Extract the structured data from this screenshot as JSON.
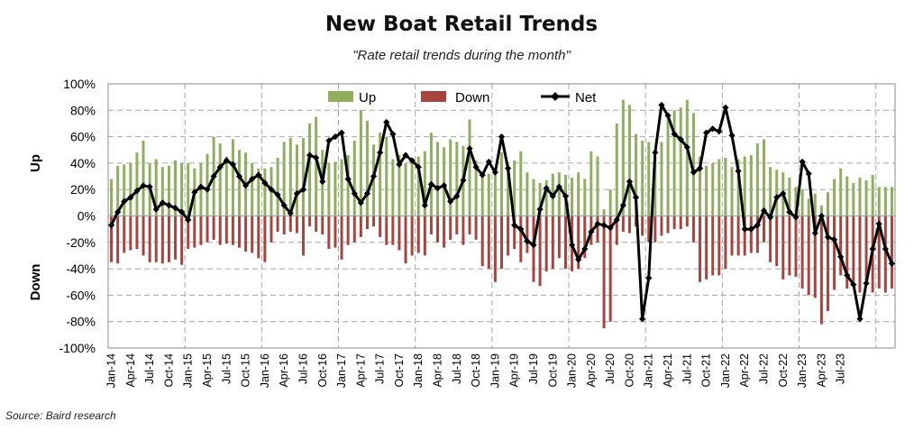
{
  "title": "New Boat Retail Trends",
  "subtitle": "\"Rate retail trends during the month\"",
  "source": "Source: Baird research",
  "colors": {
    "up": "#8fae5e",
    "down": "#a8443e",
    "net": "#000000",
    "grid": "#a6a6a6"
  },
  "chart_data": {
    "type": "bar",
    "ylabel_up": "Up",
    "ylabel_down": "Down",
    "ylim": [
      -100,
      100
    ],
    "yticks": [
      100,
      80,
      60,
      40,
      20,
      0,
      -20,
      -40,
      -60,
      -80,
      -100
    ],
    "ytick_labels": [
      "100%",
      "80%",
      "60%",
      "40%",
      "20%",
      "0%",
      "-20%",
      "-40%",
      "-60%",
      "-80%",
      "-100%"
    ],
    "legend": [
      "Up",
      "Down",
      "Net"
    ],
    "legend_position": "top-left",
    "grid": true,
    "x_tick_labels": [
      "Jan-14",
      "Apr-14",
      "Jul-14",
      "Oct-14",
      "Jan-15",
      "Apr-15",
      "Jul-15",
      "Oct-15",
      "Jan-16",
      "Apr-16",
      "Jul-16",
      "Oct-16",
      "Jan-17",
      "Apr-17",
      "Jul-17",
      "Oct-17",
      "Jan-18",
      "Apr-18",
      "Jul-18",
      "Oct-18",
      "Jan-19",
      "Apr-19",
      "Jul-19",
      "Oct-19",
      "Jan-20",
      "Apr-20",
      "Jul-20",
      "Oct-20",
      "Jan-21",
      "Apr-21",
      "Jul-21",
      "Oct-21",
      "Jan-22",
      "Apr-22",
      "Jul-22",
      "Oct-22",
      "Jan-23",
      "Apr-23",
      "Jul-23"
    ],
    "x_start": "Jan-14",
    "x_end": "Sep-23",
    "series": [
      {
        "name": "Up",
        "type": "bar",
        "values": [
          28,
          38,
          39,
          40,
          48,
          57,
          40,
          43,
          37,
          38,
          42,
          40,
          40,
          36,
          40,
          47,
          60,
          55,
          45,
          58,
          50,
          48,
          40,
          36,
          36,
          37,
          44,
          56,
          59,
          54,
          59,
          70,
          75,
          50,
          40,
          41,
          43,
          46,
          57,
          80,
          72,
          54,
          63,
          60,
          43,
          46,
          40,
          40,
          45,
          49,
          63,
          56,
          52,
          58,
          56,
          53,
          73,
          42,
          33,
          32,
          35,
          48,
          39,
          42,
          49,
          33,
          28,
          25,
          27,
          32,
          33,
          31,
          29,
          33,
          28,
          49,
          45,
          5,
          20,
          70,
          88,
          84,
          62,
          57,
          56,
          45,
          56,
          77,
          80,
          82,
          88,
          78,
          45,
          38,
          40,
          43,
          44,
          37,
          43,
          45,
          46,
          55,
          58,
          37,
          35,
          33,
          29,
          22,
          20,
          13,
          17,
          8,
          18,
          28,
          36,
          30,
          25,
          29,
          27,
          31,
          22,
          22,
          22
        ]
      },
      {
        "name": "Down",
        "type": "bar",
        "values": [
          -35,
          -36,
          -28,
          -26,
          -25,
          -30,
          -35,
          -35,
          -36,
          -35,
          -33,
          -37,
          -25,
          -24,
          -22,
          -20,
          -18,
          -22,
          -21,
          -22,
          -24,
          -27,
          -28,
          -32,
          -35,
          -20,
          -12,
          -14,
          -12,
          -13,
          -30,
          -8,
          -12,
          -14,
          -25,
          -24,
          -33,
          -22,
          -20,
          -16,
          -10,
          -8,
          -16,
          -22,
          -22,
          -26,
          -36,
          -30,
          -28,
          -30,
          -14,
          -20,
          -24,
          -18,
          -14,
          -22,
          -14,
          -18,
          -38,
          -40,
          -50,
          -40,
          -30,
          -25,
          -35,
          -28,
          -50,
          -53,
          -42,
          -40,
          -32,
          -40,
          -42,
          -40,
          -32,
          -22,
          -20,
          -85,
          -80,
          -22,
          -12,
          -13,
          -8,
          -15,
          -20,
          -20,
          -15,
          -13,
          -10,
          -10,
          -8,
          -20,
          -50,
          -48,
          -45,
          -45,
          -40,
          -30,
          -30,
          -30,
          -28,
          -28,
          -20,
          -35,
          -38,
          -48,
          -45,
          -46,
          -55,
          -60,
          -62,
          -82,
          -72,
          -56,
          -45,
          -55,
          -50,
          -58,
          -50,
          -58,
          -55,
          -58,
          -55
        ]
      },
      {
        "name": "Net",
        "type": "line",
        "values": [
          -7,
          3,
          11,
          14,
          19,
          23,
          22,
          5,
          10,
          8,
          6,
          3,
          -3,
          18,
          22,
          20,
          30,
          37,
          42,
          39,
          30,
          23,
          28,
          31,
          25,
          20,
          16,
          8,
          2,
          17,
          20,
          46,
          44,
          26,
          57,
          60,
          63,
          28,
          17,
          10,
          17,
          30,
          48,
          71,
          62,
          39,
          46,
          42,
          37,
          8,
          24,
          21,
          23,
          11,
          15,
          27,
          51,
          37,
          31,
          41,
          33,
          60,
          36,
          -7,
          -10,
          -19,
          -22,
          5,
          21,
          15,
          22,
          15,
          -22,
          -33,
          -25,
          -12,
          -6,
          -7,
          -9,
          -3,
          8,
          26,
          14,
          -78,
          -47,
          48,
          84,
          76,
          62,
          58,
          52,
          33,
          36,
          63,
          66,
          64,
          82,
          61,
          34,
          -10,
          -10,
          -7,
          4,
          -1,
          14,
          17,
          3,
          -1,
          41,
          32,
          -13,
          0,
          -16,
          -18,
          -31,
          -45,
          -52,
          -78,
          -51,
          -25,
          -6,
          -25,
          -36,
          -21,
          -17,
          -37,
          -33,
          -31
        ]
      }
    ]
  }
}
